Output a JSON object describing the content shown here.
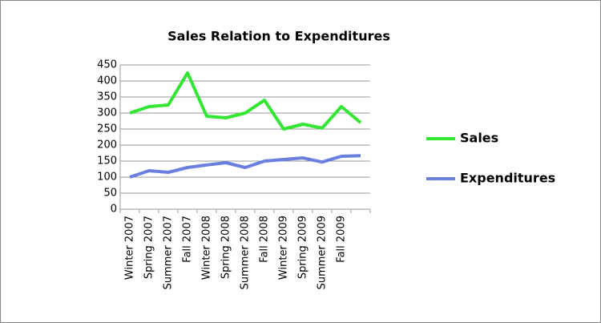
{
  "chart_data": {
    "type": "line",
    "title": "Sales Relation to Expenditures",
    "categories": [
      "Winter 2007",
      "Spring 2007",
      "Summer 2007",
      "Fall 2007",
      "Winter 2008",
      "Spring 2008",
      "Summer 2008",
      "Fall 2008",
      "Winter 2009",
      "Spring 2009",
      "Summer 2009",
      "Fall 2009",
      null
    ],
    "series": [
      {
        "name": "Sales",
        "color": "#33e633",
        "values": [
          300,
          320,
          325,
          425,
          290,
          285,
          300,
          340,
          250,
          265,
          253,
          320,
          270
        ]
      },
      {
        "name": "Expenditures",
        "color": "#6b7fe0",
        "values": [
          100,
          120,
          115,
          130,
          138,
          145,
          130,
          150,
          155,
          160,
          147,
          165,
          167
        ]
      }
    ],
    "ylim": [
      0,
      450
    ],
    "yticks": [
      0,
      50,
      100,
      150,
      200,
      250,
      300,
      350,
      400,
      450
    ],
    "grid": true,
    "legend": "right"
  }
}
